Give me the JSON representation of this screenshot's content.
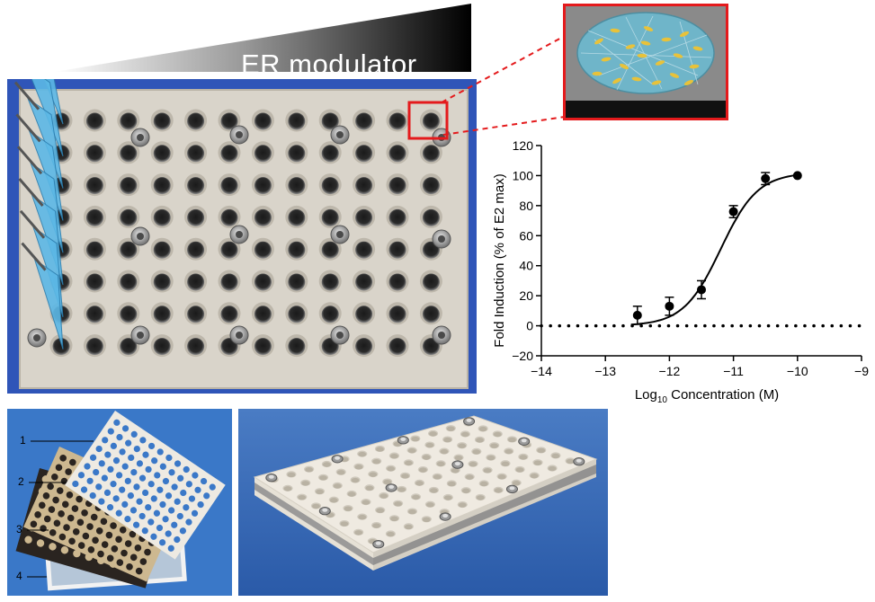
{
  "figure": {
    "gradient_label": "ER modulator",
    "layer_labels": [
      "1",
      "2",
      "3",
      "4"
    ],
    "colors": {
      "plate_blue": "#2f55b8",
      "plate_surface": "#d9d4ca",
      "inset_border": "#e41a1c",
      "pipette_tip": "#5cb8e6",
      "photo_background_blue": "#3a78c8",
      "cell_dish": "#6fb5c9",
      "cells": "#e8c23a"
    },
    "icons": [
      "pipette-tips-icon",
      "plate-well-icon",
      "screw-icon",
      "cell-dish-icon"
    ]
  },
  "chart_data": {
    "type": "scatter",
    "xlabel": "Log10 Concentration (M)",
    "ylabel": "Fold Induction (% of E2 max)",
    "xlim": [
      -14,
      -9
    ],
    "ylim": [
      -20,
      120
    ],
    "xticks": [
      "-14",
      "-13",
      "-12",
      "-11",
      "-10",
      "-9"
    ],
    "yticks": [
      "-20",
      "0",
      "20",
      "40",
      "60",
      "80",
      "100",
      "120"
    ],
    "points": [
      {
        "x": -12.5,
        "y": 7,
        "err": 6
      },
      {
        "x": -12.0,
        "y": 13,
        "err": 6
      },
      {
        "x": -11.5,
        "y": 24,
        "err": 6
      },
      {
        "x": -11.0,
        "y": 76,
        "err": 4
      },
      {
        "x": -10.5,
        "y": 98,
        "err": 4
      },
      {
        "x": -10.0,
        "y": 100,
        "err": 0
      }
    ],
    "fit": {
      "bottom": 0,
      "top": 102,
      "logEC50": -11.2,
      "hill": 1.5
    },
    "baseline_y": 0,
    "grid": false
  }
}
